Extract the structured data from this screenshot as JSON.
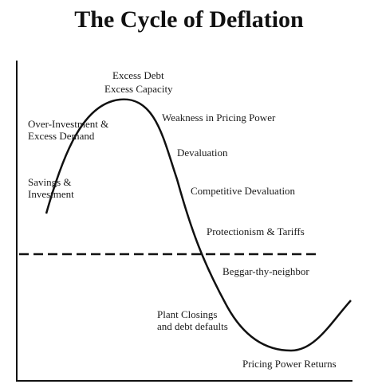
{
  "title": "The Cycle of Deflation",
  "labels": {
    "excess_debt": "Excess Debt",
    "excess_capacity": "Excess Capacity",
    "over_investment": "Over-Investment &",
    "excess_demand": "Excess Demand",
    "weakness_pricing": "Weakness in Pricing Power",
    "devaluation": "Devaluation",
    "savings": "Savings &",
    "investment": "Investment",
    "competitive_devaluation": "Competitive Devaluation",
    "protectionism": "Protectionism & Tariffs",
    "beggar": "Beggar-thy-neighbor",
    "plant_closings": "Plant Closings",
    "debt_defaults": "and debt defaults",
    "pricing_returns": "Pricing Power Returns"
  },
  "colors": {
    "ink": "#111111"
  }
}
